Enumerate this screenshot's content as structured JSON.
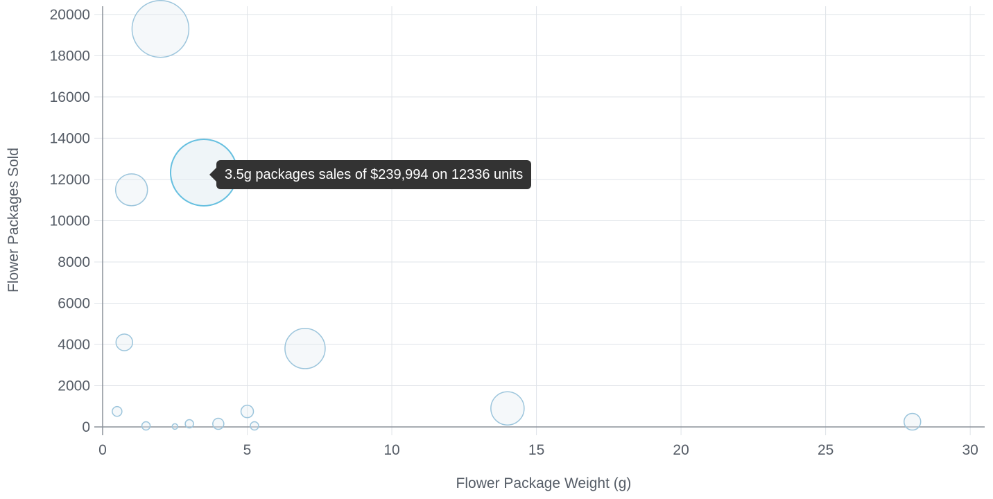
{
  "chart_data": {
    "type": "bubble",
    "xlabel": "Flower Package Weight (g)",
    "ylabel": "Flower Packages Sold",
    "xlim": [
      0,
      30.5
    ],
    "ylim": [
      0,
      20400
    ],
    "xticks": [
      0,
      5,
      10,
      15,
      20,
      25,
      30
    ],
    "yticks": [
      0,
      2000,
      4000,
      6000,
      8000,
      10000,
      12000,
      14000,
      16000,
      18000,
      20000
    ],
    "grid": true,
    "points": [
      {
        "x": 0.5,
        "y": 750,
        "size": 7
      },
      {
        "x": 0.75,
        "y": 4100,
        "size": 12
      },
      {
        "x": 1,
        "y": 11500,
        "size": 23
      },
      {
        "x": 1.5,
        "y": 50,
        "size": 6
      },
      {
        "x": 2,
        "y": 19300,
        "size": 41
      },
      {
        "x": 2.5,
        "y": 20,
        "size": 4
      },
      {
        "x": 3,
        "y": 150,
        "size": 6
      },
      {
        "x": 3.5,
        "y": 12336,
        "size": 48
      },
      {
        "x": 4,
        "y": 150,
        "size": 8
      },
      {
        "x": 5,
        "y": 750,
        "size": 9
      },
      {
        "x": 5.25,
        "y": 50,
        "size": 6
      },
      {
        "x": 7,
        "y": 3800,
        "size": 29
      },
      {
        "x": 14,
        "y": 900,
        "size": 24
      },
      {
        "x": 28,
        "y": 250,
        "size": 12
      }
    ],
    "tooltip": {
      "text": "3.5g packages sales of $239,994 on 12336 units",
      "point_index": 7
    }
  }
}
